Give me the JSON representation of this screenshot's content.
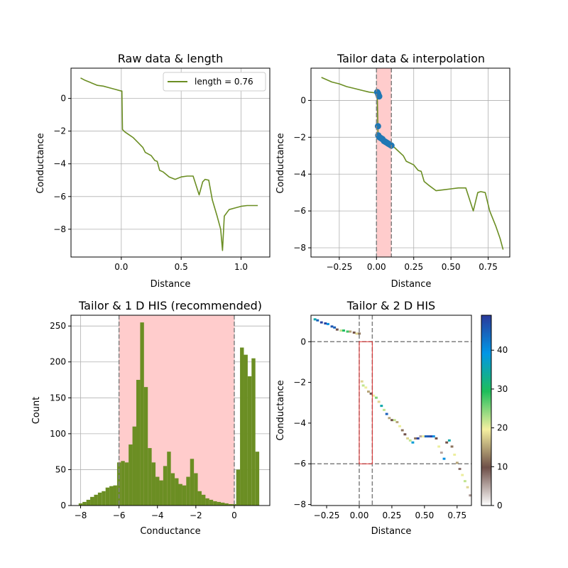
{
  "chart_data": [
    {
      "type": "line",
      "title": "Raw data & length",
      "xlabel": "Distance",
      "ylabel": "Conductance",
      "xlim": [
        -0.42,
        1.24
      ],
      "ylim": [
        -9.7,
        1.85
      ],
      "xticks": [
        0.0,
        0.5,
        1.0
      ],
      "xtick_labels": [
        "0.0",
        "0.5",
        "1.0"
      ],
      "yticks": [
        0,
        -2,
        -4,
        -6,
        -8
      ],
      "ytick_labels": [
        "0",
        "−2",
        "−4",
        "−6",
        "−8"
      ],
      "grid": true,
      "legend": {
        "position": "upper-right",
        "entries": [
          "length = 0.76"
        ]
      },
      "series": [
        {
          "name": "length = 0.76",
          "color": "#6b8e23",
          "points": [
            [
              -0.34,
              1.25
            ],
            [
              -0.3,
              1.1
            ],
            [
              -0.25,
              0.95
            ],
            [
              -0.2,
              0.8
            ],
            [
              -0.15,
              0.75
            ],
            [
              -0.1,
              0.65
            ],
            [
              -0.05,
              0.55
            ],
            [
              0.0,
              0.45
            ],
            [
              0.005,
              0.45
            ],
            [
              0.01,
              -1.9
            ],
            [
              0.03,
              -2.05
            ],
            [
              0.06,
              -2.2
            ],
            [
              0.1,
              -2.4
            ],
            [
              0.14,
              -2.7
            ],
            [
              0.18,
              -3.0
            ],
            [
              0.2,
              -3.3
            ],
            [
              0.25,
              -3.5
            ],
            [
              0.28,
              -3.8
            ],
            [
              0.3,
              -3.85
            ],
            [
              0.32,
              -4.4
            ],
            [
              0.35,
              -4.5
            ],
            [
              0.4,
              -4.8
            ],
            [
              0.45,
              -4.95
            ],
            [
              0.5,
              -4.8
            ],
            [
              0.55,
              -4.75
            ],
            [
              0.6,
              -4.75
            ],
            [
              0.65,
              -5.9
            ],
            [
              0.68,
              -5.1
            ],
            [
              0.7,
              -4.95
            ],
            [
              0.73,
              -5.0
            ],
            [
              0.76,
              -6.2
            ],
            [
              0.8,
              -7.2
            ],
            [
              0.83,
              -8.0
            ],
            [
              0.845,
              -9.3
            ],
            [
              0.86,
              -7.2
            ],
            [
              0.9,
              -6.8
            ],
            [
              0.95,
              -6.7
            ],
            [
              1.0,
              -6.6
            ],
            [
              1.05,
              -6.55
            ],
            [
              1.1,
              -6.55
            ],
            [
              1.14,
              -6.55
            ]
          ]
        }
      ]
    },
    {
      "type": "line",
      "title": "Tailor data & interpolation",
      "xlabel": "Distance",
      "ylabel": "Conductance",
      "xlim": [
        -0.44,
        0.895
      ],
      "ylim": [
        -8.5,
        1.75
      ],
      "xticks": [
        -0.25,
        0.0,
        0.25,
        0.5,
        0.75
      ],
      "xtick_labels": [
        "−0.25",
        "0.00",
        "0.25",
        "0.50",
        "0.75"
      ],
      "yticks": [
        0,
        -2,
        -4,
        -6,
        -8
      ],
      "ytick_labels": [
        "0",
        "−2",
        "−4",
        "−6",
        "−8"
      ],
      "grid": true,
      "highlight_x": [
        0.0,
        0.1
      ],
      "highlight_color": "#ffcccc",
      "series": [
        {
          "color": "#6b8e23",
          "points": [
            [
              -0.37,
              1.25
            ],
            [
              -0.3,
              1.0
            ],
            [
              -0.25,
              0.9
            ],
            [
              -0.2,
              0.75
            ],
            [
              -0.15,
              0.65
            ],
            [
              -0.1,
              0.55
            ],
            [
              -0.05,
              0.45
            ],
            [
              0.0,
              0.4
            ],
            [
              0.005,
              0.4
            ],
            [
              0.01,
              -1.8
            ],
            [
              0.03,
              -2.0
            ],
            [
              0.06,
              -2.2
            ],
            [
              0.1,
              -2.4
            ],
            [
              0.14,
              -2.7
            ],
            [
              0.18,
              -3.0
            ],
            [
              0.2,
              -3.3
            ],
            [
              0.25,
              -3.5
            ],
            [
              0.28,
              -3.8
            ],
            [
              0.3,
              -3.85
            ],
            [
              0.32,
              -4.4
            ],
            [
              0.35,
              -4.6
            ],
            [
              0.4,
              -4.9
            ],
            [
              0.45,
              -4.85
            ],
            [
              0.5,
              -4.8
            ],
            [
              0.55,
              -4.75
            ],
            [
              0.6,
              -4.75
            ],
            [
              0.65,
              -6.0
            ],
            [
              0.68,
              -5.0
            ],
            [
              0.7,
              -4.95
            ],
            [
              0.73,
              -5.0
            ],
            [
              0.76,
              -6.0
            ],
            [
              0.8,
              -6.8
            ],
            [
              0.83,
              -7.5
            ],
            [
              0.85,
              -8.1
            ]
          ]
        },
        {
          "color": "#1f77b4",
          "markers": true,
          "points": [
            [
              0.005,
              0.45
            ],
            [
              0.01,
              0.38
            ],
            [
              0.013,
              0.3
            ],
            [
              0.018,
              0.22
            ],
            [
              0.01,
              -1.4
            ],
            [
              0.012,
              -1.9
            ],
            [
              0.02,
              -2.0
            ],
            [
              0.03,
              -2.05
            ],
            [
              0.04,
              -2.1
            ],
            [
              0.05,
              -2.2
            ],
            [
              0.06,
              -2.25
            ],
            [
              0.07,
              -2.3
            ],
            [
              0.08,
              -2.35
            ],
            [
              0.09,
              -2.4
            ],
            [
              0.1,
              -2.45
            ]
          ]
        }
      ]
    },
    {
      "type": "bar",
      "title": "Tailor & 1 D HIS (recommended)",
      "xlabel": "Conductance",
      "ylabel": "Count",
      "xlim": [
        -8.5,
        1.85
      ],
      "ylim": [
        0,
        265
      ],
      "xticks": [
        -8,
        -6,
        -4,
        -2,
        0
      ],
      "xtick_labels": [
        "−8",
        "−6",
        "−4",
        "−2",
        "0"
      ],
      "yticks": [
        0,
        50,
        100,
        150,
        200,
        250
      ],
      "ytick_labels": [
        "0",
        "50",
        "100",
        "150",
        "200",
        "250"
      ],
      "grid": true,
      "highlight_x": [
        -6.0,
        0.0
      ],
      "highlight_color": "#ffcccc",
      "bar_color": "#6b8e23",
      "bin_width": 0.2,
      "bin_starts": [
        -8.1,
        -7.9,
        -7.7,
        -7.5,
        -7.3,
        -7.1,
        -6.9,
        -6.7,
        -6.5,
        -6.3,
        -6.1,
        -5.9,
        -5.7,
        -5.5,
        -5.3,
        -5.1,
        -4.9,
        -4.7,
        -4.5,
        -4.3,
        -4.1,
        -3.9,
        -3.7,
        -3.5,
        -3.3,
        -3.1,
        -2.9,
        -2.7,
        -2.5,
        -2.3,
        -2.1,
        -1.9,
        -1.7,
        -1.5,
        -1.3,
        -1.1,
        -0.9,
        -0.7,
        -0.5,
        -0.3,
        -0.1,
        0.1,
        0.3,
        0.5,
        0.7,
        0.9,
        1.1
      ],
      "counts": [
        3,
        5,
        8,
        12,
        15,
        18,
        20,
        25,
        27,
        28,
        60,
        62,
        60,
        85,
        110,
        175,
        255,
        165,
        80,
        60,
        40,
        35,
        55,
        75,
        45,
        38,
        30,
        28,
        40,
        65,
        45,
        20,
        15,
        10,
        8,
        6,
        5,
        4,
        3,
        2,
        2,
        50,
        220,
        210,
        180,
        205,
        75
      ]
    },
    {
      "type": "heatmap",
      "title": "Tailor & 2 D HIS",
      "xlabel": "Distance",
      "ylabel": "Conductance",
      "xlim": [
        -0.37,
        0.86
      ],
      "ylim": [
        -8.05,
        1.3
      ],
      "xticks": [
        -0.25,
        0.0,
        0.25,
        0.5,
        0.75
      ],
      "xtick_labels": [
        "−0.25",
        "0.00",
        "0.25",
        "0.50",
        "0.75"
      ],
      "yticks": [
        0,
        -2,
        -4,
        -6,
        -8
      ],
      "ytick_labels": [
        "0",
        "−2",
        "−4",
        "−6",
        "−8"
      ],
      "grid": false,
      "colormap": "terrain_r",
      "color_range": [
        0,
        49
      ],
      "colorbar_ticks": [
        0,
        10,
        20,
        30,
        40
      ],
      "colorbar_tick_labels": [
        "0",
        "10",
        "20",
        "30",
        "40"
      ],
      "vlines": [
        0.0,
        0.1
      ],
      "hlines": [
        0.0,
        -6.0
      ],
      "rectangle": {
        "x": [
          0.0,
          0.1
        ],
        "y": [
          -6.0,
          0.0
        ],
        "color": "#e03030"
      },
      "cells": [
        [
          -0.35,
          1.05,
          35
        ],
        [
          -0.33,
          1.0,
          45
        ],
        [
          -0.3,
          0.9,
          48
        ],
        [
          -0.27,
          0.85,
          48
        ],
        [
          -0.25,
          0.82,
          40
        ],
        [
          -0.22,
          0.7,
          46
        ],
        [
          -0.2,
          0.65,
          45
        ],
        [
          -0.18,
          0.55,
          10
        ],
        [
          -0.15,
          0.5,
          22
        ],
        [
          -0.13,
          0.5,
          30
        ],
        [
          -0.1,
          0.45,
          28
        ],
        [
          -0.08,
          0.45,
          15
        ],
        [
          -0.05,
          0.4,
          10
        ],
        [
          -0.03,
          0.35,
          18
        ],
        [
          -0.01,
          0.35,
          12
        ],
        [
          0.01,
          -2.0,
          18
        ],
        [
          0.02,
          -2.2,
          22
        ],
        [
          0.04,
          -2.3,
          20
        ],
        [
          0.06,
          -2.5,
          15
        ],
        [
          0.08,
          -2.6,
          10
        ],
        [
          0.1,
          -2.7,
          20
        ],
        [
          0.12,
          -2.8,
          25
        ],
        [
          0.14,
          -3.0,
          18
        ],
        [
          0.16,
          -3.2,
          35
        ],
        [
          0.18,
          -3.4,
          22
        ],
        [
          0.2,
          -3.6,
          45
        ],
        [
          0.22,
          -3.8,
          15
        ],
        [
          0.24,
          -3.9,
          10
        ],
        [
          0.26,
          -3.9,
          22
        ],
        [
          0.28,
          -4.0,
          15
        ],
        [
          0.3,
          -4.2,
          20
        ],
        [
          0.32,
          -4.4,
          12
        ],
        [
          0.34,
          -4.6,
          10
        ],
        [
          0.36,
          -4.8,
          18
        ],
        [
          0.38,
          -4.9,
          22
        ],
        [
          0.4,
          -5.0,
          38
        ],
        [
          0.42,
          -4.8,
          12
        ],
        [
          0.44,
          -4.8,
          48
        ],
        [
          0.46,
          -4.7,
          5
        ],
        [
          0.48,
          -4.7,
          20
        ],
        [
          0.5,
          -4.7,
          45
        ],
        [
          0.52,
          -4.7,
          46
        ],
        [
          0.54,
          -4.7,
          48
        ],
        [
          0.56,
          -4.7,
          40
        ],
        [
          0.58,
          -4.8,
          10
        ],
        [
          0.6,
          -5.2,
          20
        ],
        [
          0.62,
          -5.5,
          5
        ],
        [
          0.64,
          -5.8,
          40
        ],
        [
          0.66,
          -5.0,
          10
        ],
        [
          0.68,
          -4.9,
          35
        ],
        [
          0.7,
          -5.2,
          12
        ],
        [
          0.72,
          -5.6,
          20
        ],
        [
          0.74,
          -6.0,
          15
        ],
        [
          0.76,
          -6.3,
          8
        ],
        [
          0.78,
          -6.6,
          20
        ],
        [
          0.8,
          -6.9,
          22
        ],
        [
          0.82,
          -7.2,
          18
        ],
        [
          0.84,
          -7.6,
          6
        ]
      ]
    }
  ]
}
